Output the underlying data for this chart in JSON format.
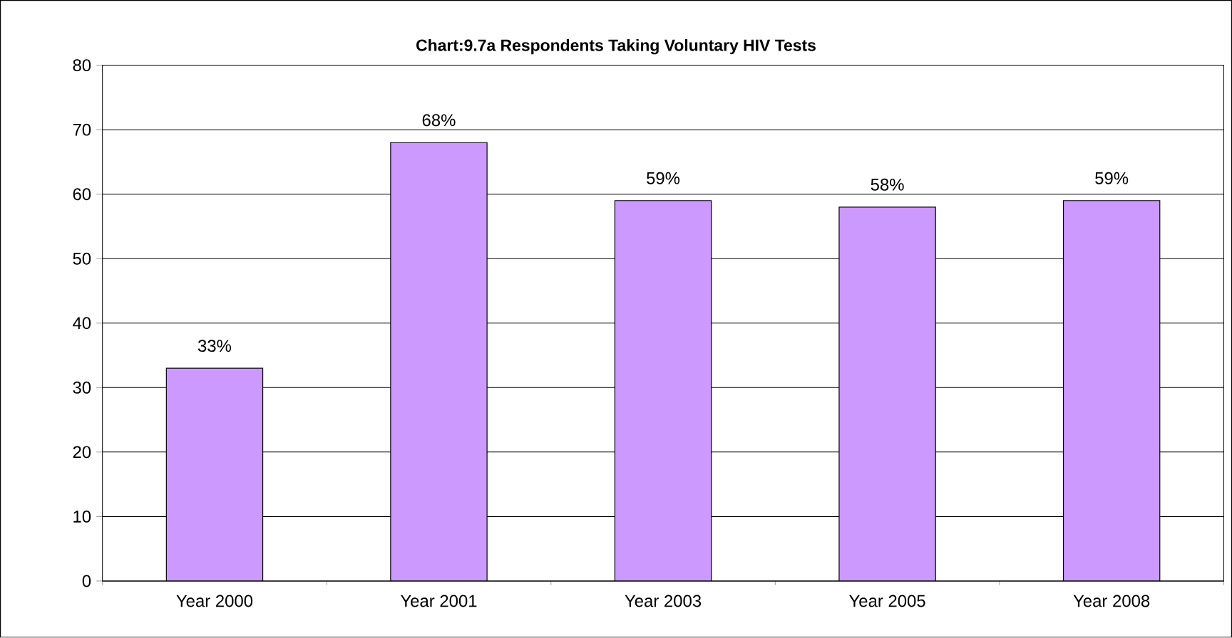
{
  "chart_data": {
    "type": "bar",
    "title": "Chart:9.7a Respondents Taking Voluntary HIV Tests",
    "categories": [
      "Year 2000",
      "Year 2001",
      "Year 2003",
      "Year 2005",
      "Year 2008"
    ],
    "values": [
      33,
      68,
      59,
      58,
      59
    ],
    "value_labels": [
      "33%",
      "68%",
      "59%",
      "58%",
      "59%"
    ],
    "color": "#cc99ff",
    "ylim": [
      0,
      80
    ],
    "yticks": [
      0,
      10,
      20,
      30,
      40,
      50,
      60,
      70,
      80
    ],
    "grid": "y"
  }
}
